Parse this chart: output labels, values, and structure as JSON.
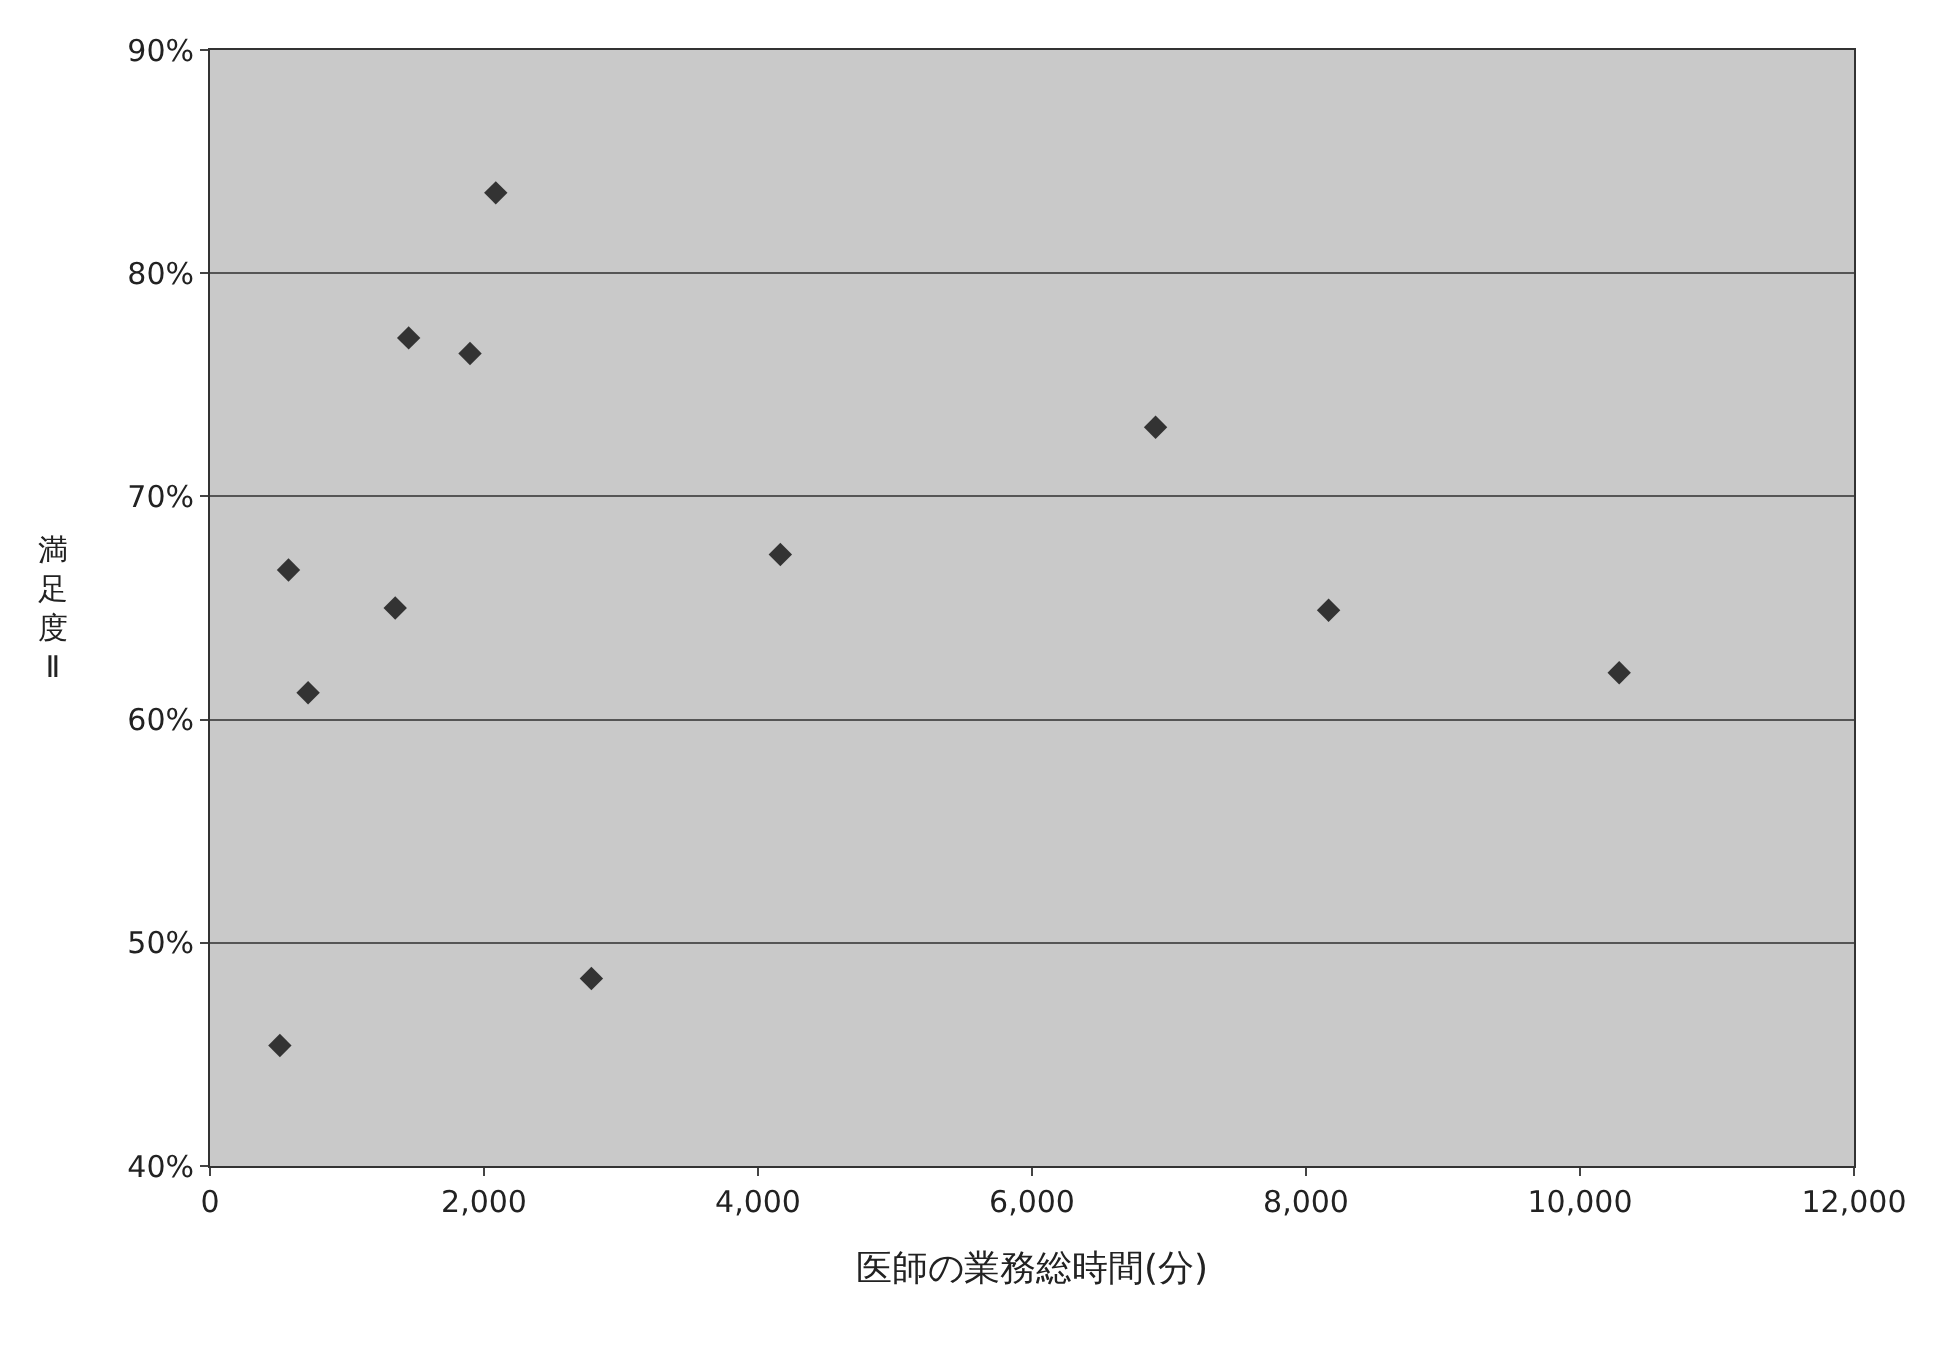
{
  "chart_data": {
    "type": "scatter",
    "xlabel": "医師の業務総時間(分)",
    "ylabel": "満足度Ⅱ",
    "x": [
      510,
      573,
      716,
      1352,
      1450,
      1898,
      2086,
      2784,
      4163,
      6902,
      8165,
      10286
    ],
    "series": [
      {
        "color": "#333333",
        "values": [
          45.4,
          66.7,
          61.2,
          65.0,
          77.1,
          76.4,
          83.6,
          48.4,
          67.4,
          73.1,
          64.9,
          62.1
        ]
      }
    ],
    "xlim": [
      0,
      12000
    ],
    "xticks": [
      0,
      {
        "value": 2000,
        "label": "2,000"
      },
      {
        "value": 4000,
        "label": "4,000"
      },
      {
        "value": 6000,
        "label": "6,000"
      },
      {
        "value": 8000,
        "label": "8,000"
      },
      {
        "value": 10000,
        "label": "10,000"
      },
      {
        "value": 12000,
        "label": "12,000"
      }
    ],
    "ylim": [
      40,
      90
    ],
    "yticks": [
      {
        "value": 40,
        "label": "40%"
      },
      {
        "value": 50,
        "label": "50%"
      },
      {
        "value": 60,
        "label": "60%"
      },
      {
        "value": 70,
        "label": "70%"
      },
      {
        "value": 80,
        "label": "80%"
      },
      {
        "value": 90,
        "label": "90%"
      }
    ],
    "grid": "y",
    "marker": "diamond"
  }
}
